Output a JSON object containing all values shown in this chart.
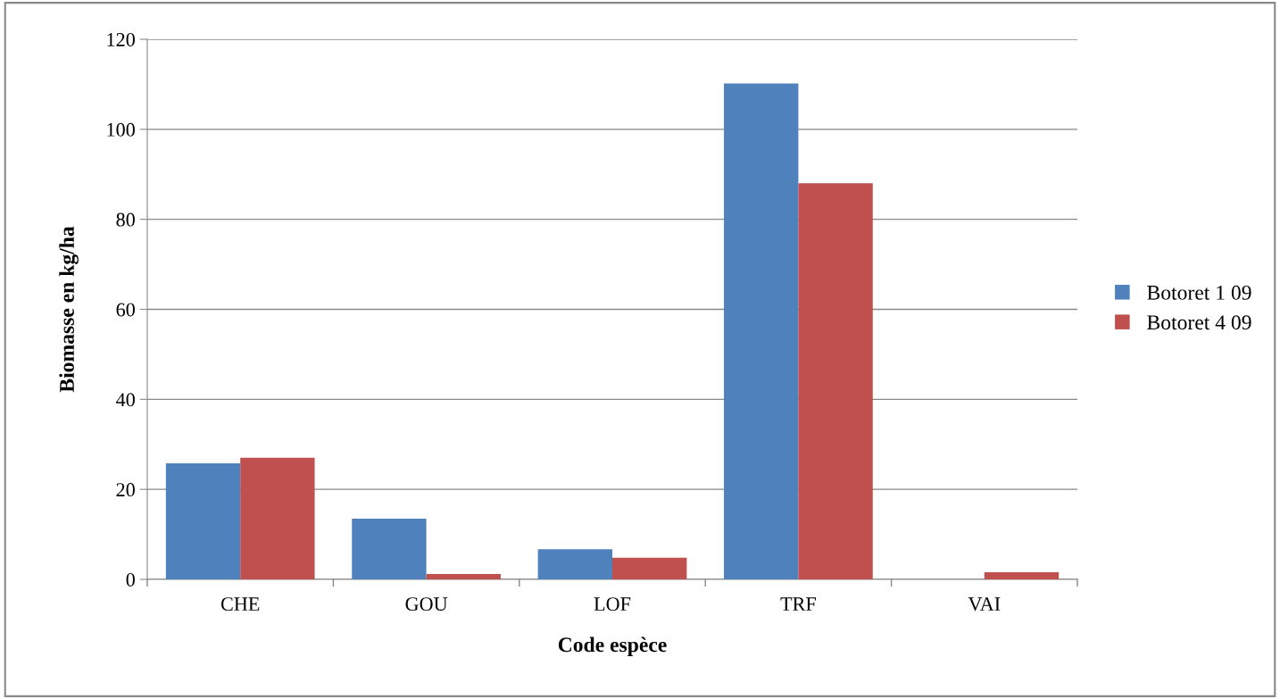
{
  "chart_data": {
    "type": "bar",
    "xlabel": "Code espèce",
    "ylabel": "Biomasse en kg/ha",
    "categories": [
      "CHE",
      "GOU",
      "LOF",
      "TRF",
      "VAI"
    ],
    "series": [
      {
        "name": "Botoret 1 09",
        "color": "#4f81bd",
        "values": [
          25.8,
          13.5,
          6.7,
          110.2,
          0
        ]
      },
      {
        "name": "Botoret 4 09",
        "color": "#c0504d",
        "values": [
          27.0,
          1.2,
          4.8,
          88.0,
          1.6
        ]
      }
    ],
    "ylim": [
      0,
      120
    ],
    "yticks": [
      0,
      20,
      40,
      60,
      80,
      100,
      120
    ],
    "grid": "y",
    "legend": "right"
  }
}
